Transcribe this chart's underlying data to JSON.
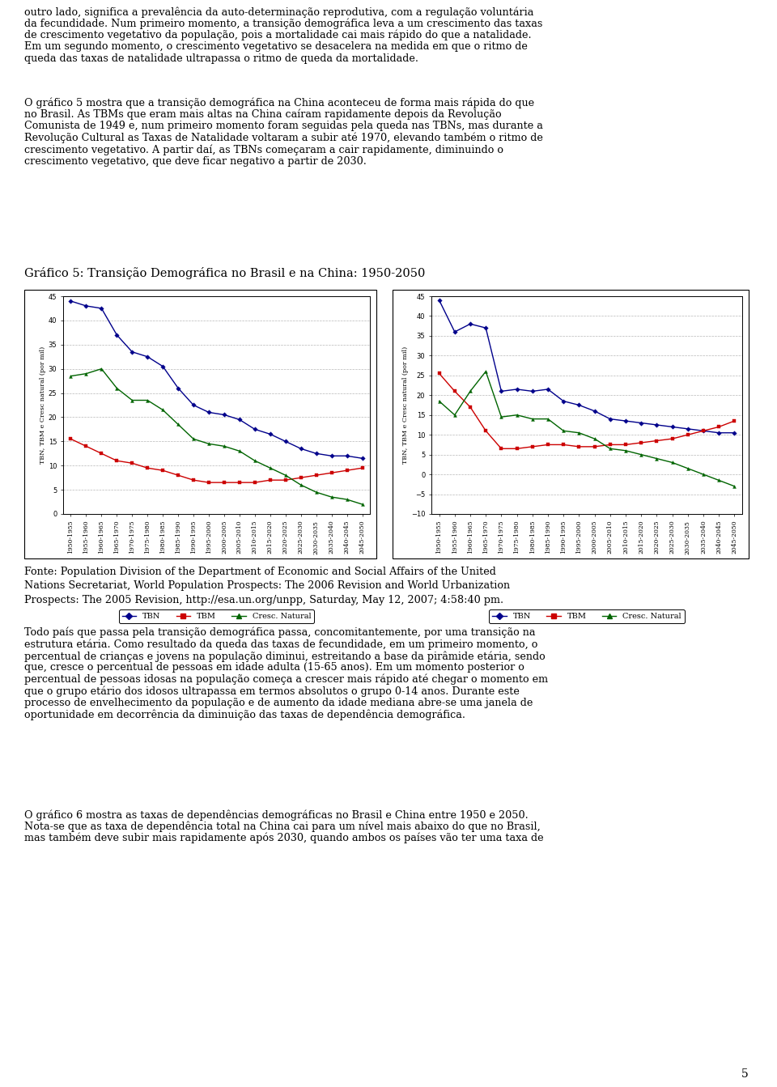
{
  "title": "Gráfico 5: Transição Demográfica no Brasil e na China: 1950-2050",
  "ylabel": "TBN, TBM e Cresc natural (por mil)",
  "x_labels": [
    "1950-1955",
    "1955-1960",
    "1960-1965",
    "1965-1970",
    "1970-1975",
    "1975-1980",
    "1980-1985",
    "1985-1990",
    "1990-1995",
    "1995-2000",
    "2000-2005",
    "2005-2010",
    "2010-2015",
    "2015-2020",
    "2020-2025",
    "2025-2030",
    "2030-2035",
    "2035-2040",
    "2040-2045",
    "2045-2050"
  ],
  "brazil_TBN": [
    44.0,
    43.0,
    42.5,
    37.0,
    33.5,
    32.5,
    30.5,
    26.0,
    22.5,
    21.0,
    20.5,
    19.5,
    17.5,
    16.5,
    15.0,
    13.5,
    12.5,
    12.0,
    12.0,
    11.5
  ],
  "brazil_TBM": [
    15.5,
    14.0,
    12.5,
    11.0,
    10.5,
    9.5,
    9.0,
    8.0,
    7.0,
    6.5,
    6.5,
    6.5,
    6.5,
    7.0,
    7.0,
    7.5,
    8.0,
    8.5,
    9.0,
    9.5
  ],
  "brazil_CN": [
    28.5,
    29.0,
    30.0,
    26.0,
    23.5,
    23.5,
    21.5,
    18.5,
    15.5,
    14.5,
    14.0,
    13.0,
    11.0,
    9.5,
    8.0,
    6.0,
    4.5,
    3.5,
    3.0,
    2.0
  ],
  "china_TBN": [
    44.0,
    36.0,
    38.0,
    37.0,
    21.0,
    21.5,
    21.0,
    21.5,
    18.5,
    17.5,
    16.0,
    14.0,
    13.5,
    13.0,
    12.5,
    12.0,
    11.5,
    11.0,
    10.5,
    10.5
  ],
  "china_TBM": [
    25.5,
    21.0,
    17.0,
    11.0,
    6.5,
    6.5,
    7.0,
    7.5,
    7.5,
    7.0,
    7.0,
    7.5,
    7.5,
    8.0,
    8.5,
    9.0,
    10.0,
    11.0,
    12.0,
    13.5
  ],
  "china_CN": [
    18.5,
    15.0,
    21.0,
    26.0,
    14.5,
    15.0,
    14.0,
    14.0,
    11.0,
    10.5,
    9.0,
    6.5,
    6.0,
    5.0,
    4.0,
    3.0,
    1.5,
    0.0,
    -1.5,
    -3.0
  ],
  "color_TBN": "#00008B",
  "color_TBM": "#CC0000",
  "color_CN": "#006400",
  "fonte": "Fonte: Population Division of the Department of Economic and Social Affairs of the United\nNations Secretariat, World Population Prospects: The 2006 Revision and World Urbanization\nProspects: The 2005 Revision, http://esa.un.org/unpp, Saturday, May 12, 2007; 4:58:40 pm.",
  "para1_line1": "outro lado, significa a prevalência da auto-determinação reprodutiva, com a regulação voluntária",
  "para1_line2": "da fecundidade. Num primeiro momento, a transição demográfica leva a um crescimento das taxas",
  "para1_line3": "de crescimento vegetativo da população, pois a mortalidade cai mais rápido do que a natalidade.",
  "para1_line4": "Em um segundo momento, o crescimento vegetativo se desacelera na medida em que o ritmo de",
  "para1_line5": "queda das taxas de natalidade ultrapassa o ritmo de queda da mortalidade.",
  "para2_line1": "O gráfico 5 mostra que a transição demográfica na China aconteceu de forma mais rápida do que",
  "para2_line2": "no Brasil. As TBMs que eram mais altas na China caíram rapidamente depois da Revolução",
  "para2_line3": "Comunista de 1949 e, num primeiro momento foram seguidas pela queda nas TBNs, mas durante a",
  "para2_line4": "Revolução Cultural as Taxas de Natalidade voltaram a subir até 1970, elevando também o ritmo de",
  "para2_line5": "crescimento vegetativo. A partir daí, as TBNs começaram a cair rapidamente, diminuindo o",
  "para2_line6": "crescimento vegetativo, que deve ficar negativo a partir de 2030.",
  "para3_line1": "Todo país que passa pela transição demográfica passa, concomitantemente, por uma transição na",
  "para3_line2": "estrutura etária. Como resultado da queda das taxas de fecundidade, em um primeiro momento, o",
  "para3_line3": "percentual de crianças e jovens na população diminui, estreitando a base da pirâmide etária, sendo",
  "para3_line4": "que, cresce o percentual de pessoas em idade adulta (15-65 anos). Em um momento posterior o",
  "para3_line5": "percentual de pessoas idosas na população começa a crescer mais rápido até chegar o momento em",
  "para3_line6": "que o grupo etário dos idosos ultrapassa em termos absolutos o grupo 0-14 anos. Durante este",
  "para3_line7": "processo de envelhecimento da população e de aumento da idade mediana abre-se uma janela de",
  "para3_line8": "oportunidade em decorrência da diminuição das taxas de dependência demográfica.",
  "para4_line1": "O gráfico 6 mostra as taxas de dependências demográficas no Brasil e China entre 1950 e 2050.",
  "para4_line2": "Nota-se que as taxa de dependência total na China cai para um nível mais abaixo do que no Brasil,",
  "para4_line3": "mas também deve subir mais rapidamente após 2030, quando ambos os países vão ter uma taxa de",
  "page_num": "5"
}
